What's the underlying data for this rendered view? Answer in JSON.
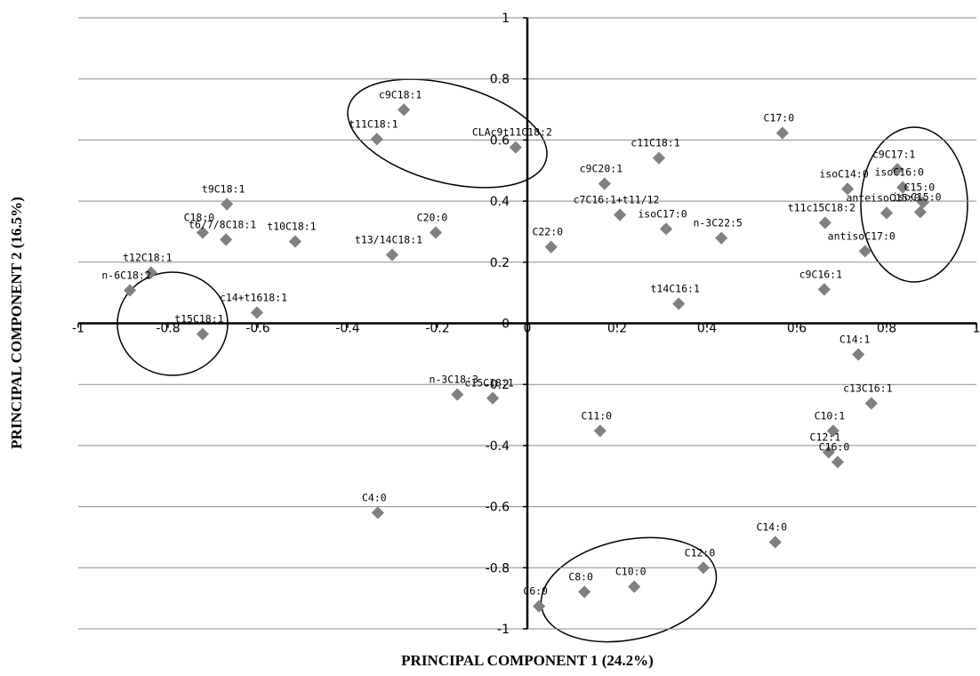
{
  "chart_data": {
    "type": "scatter",
    "xlabel": "PRINCIPAL COMPONENT 1 (24.2%)",
    "ylabel": "PRINCIPAL COMPONENT 2 (16.5%)",
    "xlim": [
      -1,
      1
    ],
    "ylim": [
      -1,
      1
    ],
    "xticks": [
      -1,
      -0.8,
      -0.6,
      -0.4,
      -0.2,
      0,
      0.2,
      0.4,
      0.6,
      0.8,
      1
    ],
    "yticks": [
      -1,
      -0.8,
      -0.6,
      -0.4,
      -0.2,
      0,
      0.2,
      0.4,
      0.6,
      0.8,
      1
    ],
    "grid": true,
    "color": "#808080",
    "point_labels": [
      "c9C18:1",
      "t11C18:1",
      "CLAc9t11C18:2",
      "C17:0",
      "c11C18:1",
      "c9C20:1",
      "c7C16:1+t11/12",
      "isoC17:0",
      "n-3C22:5",
      "C22:0",
      "t14C16:1",
      "isoC14:0",
      "c9C17:1",
      "isoC16:0",
      "C15:0",
      "isoC15:0",
      "anteisoC15:0",
      "t11c15C18:2",
      "antisoC17:0",
      "c9C16:1",
      "C14:1",
      "c13C16:1",
      "C10:1",
      "C12:1",
      "C16:0",
      "C14:0",
      "C12:0",
      "C10:0",
      "C8:0",
      "C6:0",
      "C11:0",
      "n-3C18:3",
      "c15C18:1",
      "C4:0",
      "t9C18:1",
      "C18:0",
      "t6/7/8C18:1",
      "t10C18:1",
      "C20:0",
      "t13/14C18:1",
      "t12C18:1",
      "n-6C18:2",
      "c14+t1618:1",
      "t15C18:1"
    ],
    "x": [
      -0.275,
      -0.335,
      -0.026,
      0.568,
      0.293,
      0.172,
      0.206,
      0.309,
      0.432,
      0.053,
      0.337,
      0.713,
      0.824,
      0.836,
      0.881,
      0.875,
      0.8,
      0.663,
      0.752,
      0.661,
      0.737,
      0.766,
      0.681,
      0.671,
      0.691,
      0.552,
      0.392,
      0.238,
      0.127,
      0.026,
      0.162,
      -0.156,
      -0.077,
      -0.333,
      -0.669,
      -0.723,
      -0.671,
      -0.517,
      -0.204,
      -0.301,
      -0.838,
      -0.885,
      -0.602,
      -0.723
    ],
    "values": [
      0.699,
      0.603,
      0.576,
      0.623,
      0.541,
      0.457,
      0.355,
      0.309,
      0.279,
      0.25,
      0.064,
      0.44,
      0.504,
      0.445,
      0.396,
      0.364,
      0.361,
      0.329,
      0.236,
      0.111,
      -0.102,
      -0.262,
      -0.352,
      -0.422,
      -0.454,
      -0.716,
      -0.8,
      -0.862,
      -0.879,
      -0.926,
      -0.352,
      -0.233,
      -0.245,
      -0.62,
      0.39,
      0.297,
      0.274,
      0.268,
      0.297,
      0.224,
      0.166,
      0.108,
      0.035,
      -0.035
    ]
  }
}
